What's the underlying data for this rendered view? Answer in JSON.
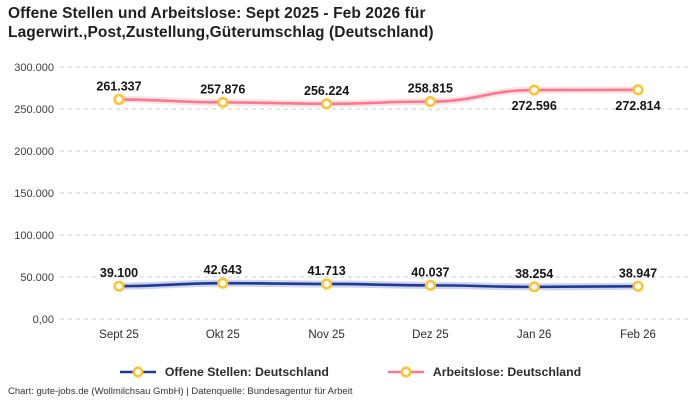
{
  "header": {
    "title": "Offene Stellen und Arbeitslose: Sept 2025 - Feb 2026 für Lagerwirt.,Post,Zustellung,Güterumschlag (Deutschland)"
  },
  "footer": {
    "credit": "Chart: gute-jobs.de (Wollmilchsau GmbH) | Datenquelle: Bundesagentur für Arbeit"
  },
  "colors": {
    "open_positions_line": "#1E3A99",
    "unemployed_line": "#F9798F",
    "marker_ring": "#FDC42F",
    "marker_fill": "#FFFFFF",
    "grid": "#CCCCCC",
    "axis_text": "#3C3C3C",
    "label_text": "#141414"
  },
  "chart_data": {
    "type": "line",
    "title": "Offene Stellen und Arbeitslose: Sept 2025 - Feb 2026 für Lagerwirt.,Post,Zustellung,Güterumschlag (Deutschland)",
    "categories": [
      "Sept 25",
      "Okt 25",
      "Nov 25",
      "Dez 25",
      "Jan 26",
      "Feb 26"
    ],
    "ylim": [
      0,
      300000
    ],
    "grid": "horizontal-dashed",
    "legend_position": "bottom",
    "y_ticks": [
      {
        "value": 300000,
        "label": "300.000"
      },
      {
        "value": 250000,
        "label": "250.000"
      },
      {
        "value": 200000,
        "label": "200.000"
      },
      {
        "value": 150000,
        "label": "150.000"
      },
      {
        "value": 100000,
        "label": "100.000"
      },
      {
        "value": 50000,
        "label": "50.000"
      },
      {
        "value": 0,
        "label": "0,00"
      }
    ],
    "series": [
      {
        "name": "Offene Stellen: Deutschland",
        "color": "#1E3A99",
        "values": [
          39100,
          42643,
          41713,
          40037,
          38254,
          38947
        ],
        "labels": [
          "39.100",
          "42.643",
          "41.713",
          "40.037",
          "38.254",
          "38.947"
        ],
        "label_side": [
          "above",
          "above",
          "above",
          "above",
          "above",
          "above"
        ]
      },
      {
        "name": "Arbeitslose: Deutschland",
        "color": "#F9798F",
        "values": [
          261337,
          257876,
          256224,
          258815,
          272596,
          272814
        ],
        "labels": [
          "261.337",
          "257.876",
          "256.224",
          "258.815",
          "272.596",
          "272.814"
        ],
        "label_side": [
          "above",
          "above",
          "above",
          "above",
          "below",
          "below"
        ]
      }
    ]
  }
}
